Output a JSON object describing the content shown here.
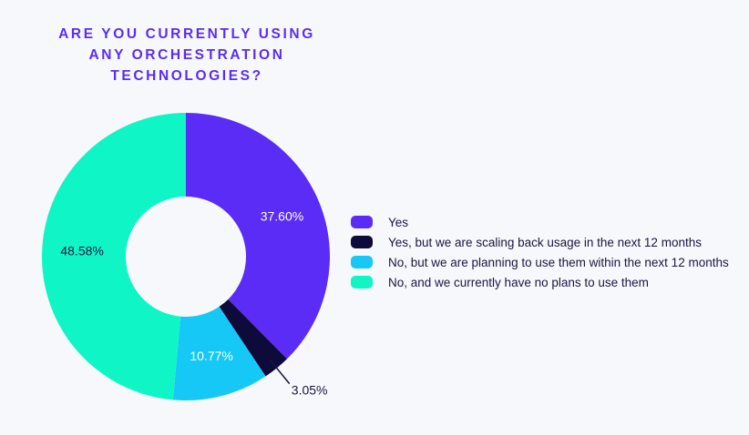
{
  "chart_data": {
    "type": "pie",
    "title": "ARE YOU CURRENTLY USING\nANY ORCHESTRATION\nTECHNOLOGIES?",
    "legend_position": "right",
    "slices": [
      {
        "name": "Yes",
        "value": 37.6,
        "label": "37.60%",
        "color": "#5b2cf5",
        "label_color": "#ffffff"
      },
      {
        "name": "Yes, but we are scaling back usage in the next 12 months",
        "value": 3.05,
        "label": "3.05%",
        "color": "#0e0a3a",
        "label_color": "#1b1440"
      },
      {
        "name": "No, but we are planning to use them within the next 12 months",
        "value": 10.77,
        "label": "10.77%",
        "color": "#16c8f5",
        "label_color": "#ffffff"
      },
      {
        "name": "No, and we currently have no plans to use them",
        "value": 48.58,
        "label": "48.58%",
        "color": "#10f5c6",
        "label_color": "#1b1440"
      }
    ]
  }
}
